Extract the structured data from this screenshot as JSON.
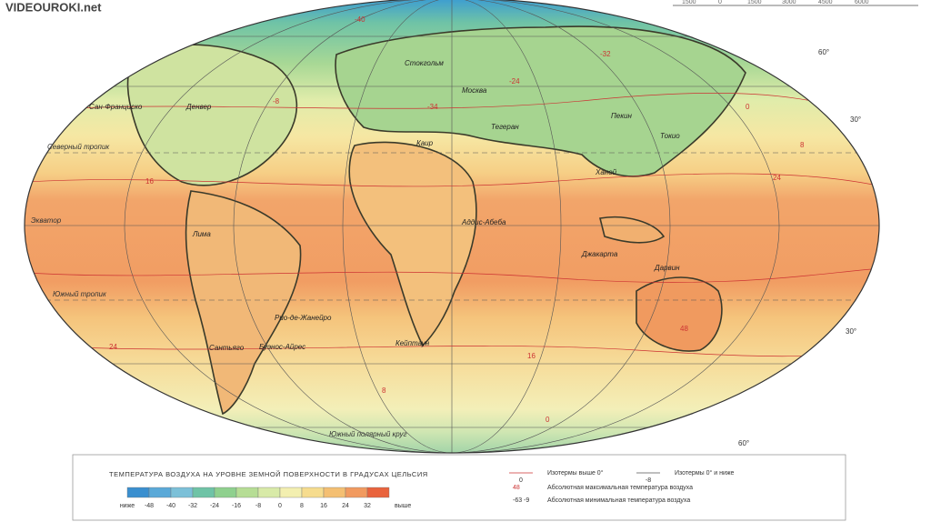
{
  "watermark": "VIDEOUROKI.net",
  "scale_bar": [
    "1500",
    "0",
    "1500",
    "3000",
    "4500",
    "6000"
  ],
  "map": {
    "places": [
      "Москва",
      "Сан-Франциско",
      "Денвер",
      "Стокгольм",
      "Пекин",
      "Токио",
      "Лима",
      "Сантьяго",
      "Рио-де-Жанейро",
      "Буэнос-Айрес",
      "Кейптаун",
      "Аддис-Абеба",
      "Джакарта",
      "Дарвин",
      "Ханой",
      "Каир",
      "Тегеран"
    ],
    "lines": [
      "Северный тропик",
      "Экватор",
      "Южный тропик",
      "Южный полярный круг"
    ],
    "isotherm_labels": [
      "-40",
      "-32",
      "-24",
      "-8",
      "0",
      "8",
      "16",
      "24",
      "24",
      "16",
      "8",
      "0",
      "48",
      "-34"
    ],
    "parallels": [
      "60°",
      "30°",
      "30°",
      "60°"
    ]
  },
  "legend": {
    "title": "ТЕМПЕРАТУРА ВОЗДУХА НА УРОВНЕ ЗЕМНОЙ ПОВЕРХНОСТИ В ГРАДУСАХ ЦЕЛЬСИЯ",
    "scale": [
      {
        "label": "ниже",
        "color": "#3a8fcf"
      },
      {
        "label": "-48",
        "color": "#5aa9d8"
      },
      {
        "label": "-40",
        "color": "#7cc0d8"
      },
      {
        "label": "-32",
        "color": "#6fc3a6"
      },
      {
        "label": "-24",
        "color": "#8fd08e"
      },
      {
        "label": "-16",
        "color": "#b6dd95"
      },
      {
        "label": "-8",
        "color": "#d8eaa8"
      },
      {
        "label": "0",
        "color": "#f3efb0"
      },
      {
        "label": "8",
        "color": "#f6dc8e"
      },
      {
        "label": "16",
        "color": "#f4bf72"
      },
      {
        "label": "24",
        "color": "#f19a5f"
      },
      {
        "label": "32",
        "color": "#e9633d"
      }
    ],
    "scale_end": "выше",
    "items": [
      {
        "sample": "0",
        "text": "Изотермы выше 0°"
      },
      {
        "sample": "-8",
        "text": "Изотермы 0° и ниже"
      },
      {
        "sample": "48",
        "text": "Абсолютная максимальная температура воздуха"
      },
      {
        "sample": "-63 -9",
        "text": "Абсолютная минимальная температура воздуха"
      }
    ]
  }
}
